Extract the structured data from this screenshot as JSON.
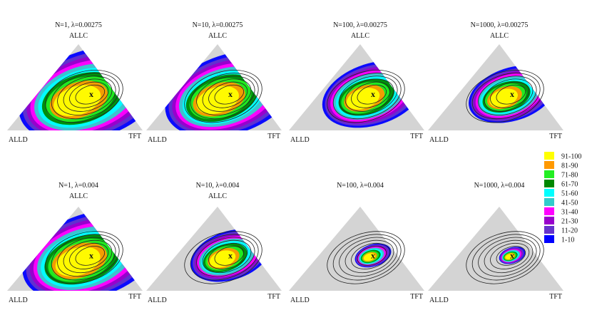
{
  "figure": {
    "panels": [
      {
        "title": "N=1, λ=0.00275",
        "labels": {
          "top": "ALLC",
          "left": "ALLD",
          "right": "TFT"
        },
        "spread": 1.0,
        "marker": "x"
      },
      {
        "title": "N=10, λ=0.00275",
        "labels": {
          "top": "ALLC",
          "left": "ALLD",
          "right": "TFT"
        },
        "spread": 0.9,
        "marker": "x"
      },
      {
        "title": "N=100, λ=0.00275",
        "labels": {
          "top": "ALLC",
          "left": "ALLD",
          "right": "TFT"
        },
        "spread": 0.7,
        "marker": "x"
      },
      {
        "title": "N=1000, λ=0.00275",
        "labels": {
          "top": "ALLC",
          "left": "ALLD",
          "right": "TFT"
        },
        "spread": 0.6,
        "marker": "x"
      },
      {
        "title": "N=1, λ=0.004",
        "labels": {
          "top": "ALLC",
          "left": "ALLD",
          "right": "TFT"
        },
        "spread": 0.95,
        "marker": "x"
      },
      {
        "title": "N=10, λ=0.004",
        "labels": {
          "top": "ALLC",
          "left": "ALLD",
          "right": "TFT"
        },
        "spread": 0.55,
        "marker": "x"
      },
      {
        "title": "N=100, λ=0.004",
        "labels": {
          "top": "",
          "left": "ALLD",
          "right": "TFT"
        },
        "spread": 0.25,
        "marker": "x"
      },
      {
        "title": "N=1000, λ=0.004",
        "labels": {
          "top": "",
          "left": "ALLD",
          "right": "TFT"
        },
        "spread": 0.18,
        "marker": "x"
      }
    ],
    "legend": {
      "items": [
        {
          "label": "91-100",
          "color": "#ffff00"
        },
        {
          "label": "81-90",
          "color": "#ff9900"
        },
        {
          "label": "71-80",
          "color": "#22ee22"
        },
        {
          "label": "61-70",
          "color": "#008800"
        },
        {
          "label": "51-60",
          "color": "#00ffff"
        },
        {
          "label": "41-50",
          "color": "#33cccc"
        },
        {
          "label": "31-40",
          "color": "#ff00ff"
        },
        {
          "label": "21-30",
          "color": "#9900cc"
        },
        {
          "label": "11-20",
          "color": "#6633cc"
        },
        {
          "label": "1-10",
          "color": "#0000ff"
        }
      ]
    },
    "background_color": "#d4d4d4",
    "contour_color": "#222222"
  }
}
